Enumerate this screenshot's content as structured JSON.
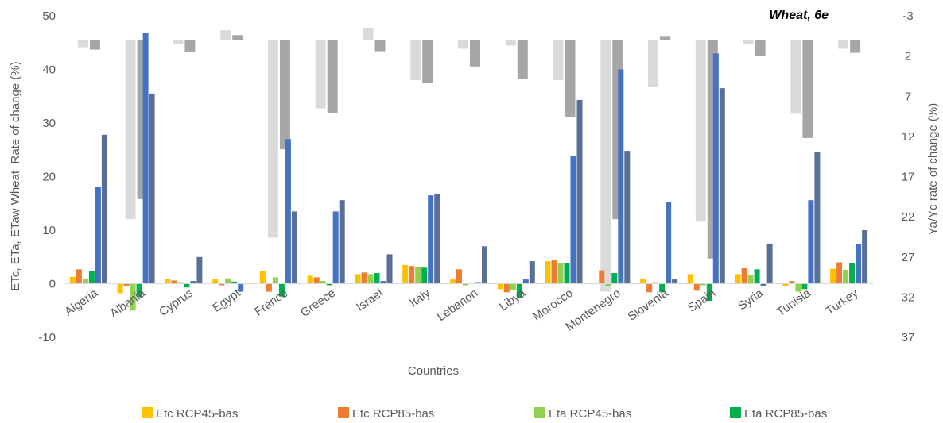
{
  "chart_data": {
    "type": "bar",
    "title": "Wheat, 6e",
    "xlabel": "Countries",
    "ylabel": "ETc, ETa, ETaw Wheat_Rate of change (%)",
    "y2label": "Ya/Yc rate of change (%)",
    "ylim": [
      -10,
      50
    ],
    "y_ticks": [
      "-10",
      "0",
      "10",
      "20",
      "30",
      "40",
      "50"
    ],
    "y2lim": [
      -3,
      37
    ],
    "y2_ticks": [
      "-3",
      "2",
      "7",
      "12",
      "17",
      "22",
      "27",
      "32",
      "37"
    ],
    "y2_inverted": true,
    "categories": [
      "Algeria",
      "Albania",
      "Cyprus",
      "Egypt",
      "France",
      "Greece",
      "Israel",
      "Italy",
      "Lebanon",
      "Libya",
      "Morocco",
      "Montenegro",
      "Slovenia",
      "Spain",
      "Syria",
      "Tunisia",
      "Turkey"
    ],
    "series": [
      {
        "name": "Etc RCP45-bas",
        "color": "#FFC000",
        "axis": "primary",
        "values": [
          1.3,
          -1.8,
          0.9,
          0.9,
          2.4,
          1.5,
          1.8,
          3.5,
          0.8,
          -1.0,
          4.2,
          0.0,
          0.9,
          1.8,
          1.8,
          -0.5,
          2.8
        ]
      },
      {
        "name": "Etc RCP85-bas",
        "color": "#ED7D31",
        "axis": "primary",
        "values": [
          2.7,
          -0.5,
          0.6,
          -0.3,
          -1.5,
          1.2,
          2.1,
          3.3,
          2.7,
          -1.6,
          4.5,
          2.5,
          -1.6,
          -1.3,
          2.9,
          0.5,
          4.0
        ]
      },
      {
        "name": "Eta RCP45-bas",
        "color": "#92D050",
        "axis": "primary",
        "values": [
          1.0,
          -5.0,
          0.3,
          1.0,
          1.2,
          0.5,
          1.8,
          3.1,
          -0.3,
          -1.2,
          3.9,
          -0.4,
          0.3,
          -0.3,
          1.6,
          -1.5,
          2.6
        ]
      },
      {
        "name": "Eta RCP85-bas",
        "color": "#00B050",
        "axis": "primary",
        "values": [
          2.4,
          -2.5,
          -0.7,
          0.4,
          -2.4,
          -0.3,
          2.0,
          3.0,
          0.2,
          -2.6,
          3.8,
          2.0,
          -1.6,
          -3.2,
          2.7,
          -1.0,
          3.8
        ]
      },
      {
        "name": "",
        "color": "#4472C4",
        "axis": "primary",
        "values": [
          18.0,
          46.8,
          0.5,
          -1.5,
          27.0,
          13.5,
          0.5,
          16.5,
          0.3,
          0.8,
          23.8,
          40.0,
          15.2,
          43.0,
          -0.5,
          15.6,
          7.4
        ]
      },
      {
        "name": "",
        "color": "#5A6F98",
        "axis": "primary",
        "values": [
          27.8,
          35.5,
          5.0,
          0.0,
          13.5,
          15.6,
          5.5,
          16.8,
          7.0,
          4.2,
          34.3,
          24.8,
          0.9,
          36.5,
          7.5,
          24.6,
          10.0
        ]
      },
      {
        "name": "",
        "color": "#DADADA",
        "axis": "secondary",
        "values": [
          0.9,
          22.3,
          0.5,
          -1.2,
          24.6,
          8.5,
          -1.5,
          5.0,
          1.1,
          0.7,
          5.0,
          31.3,
          5.8,
          22.6,
          0.5,
          9.2,
          1.1
        ]
      },
      {
        "name": "",
        "color": "#A6A6A6",
        "axis": "secondary",
        "values": [
          1.2,
          19.8,
          1.5,
          -0.6,
          13.6,
          9.1,
          1.4,
          5.3,
          3.3,
          4.9,
          9.6,
          22.3,
          -0.5,
          27.2,
          2.0,
          12.2,
          1.6
        ]
      }
    ],
    "legend_entries": [
      "Etc RCP45-bas",
      "Etc RCP85-bas",
      "Eta RCP45-bas",
      "Eta RCP85-bas"
    ],
    "legend_colors": [
      "#FFC000",
      "#ED7D31",
      "#92D050",
      "#00B050"
    ],
    "legend_position": "bottom",
    "grid": false
  }
}
